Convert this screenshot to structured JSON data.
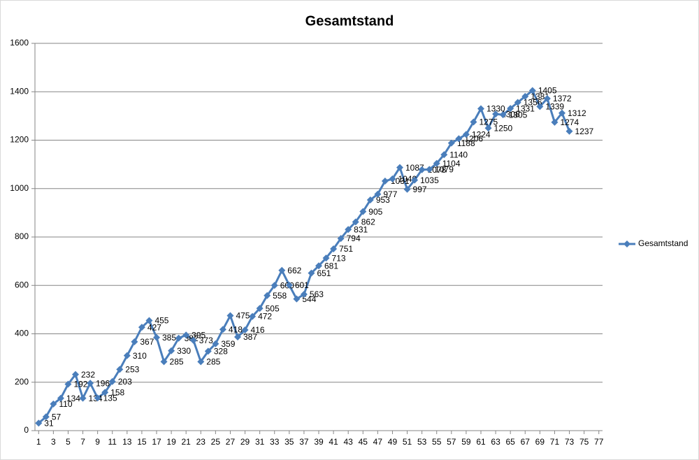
{
  "chart_data": {
    "type": "line",
    "title": "Gesamtstand",
    "x": [
      1,
      2,
      3,
      4,
      5,
      6,
      7,
      8,
      9,
      10,
      11,
      12,
      13,
      14,
      15,
      16,
      17,
      18,
      19,
      20,
      21,
      22,
      23,
      24,
      25,
      26,
      27,
      28,
      29,
      30,
      31,
      32,
      33,
      34,
      35,
      36,
      37,
      38,
      39,
      40,
      41,
      42,
      43,
      44,
      45,
      46,
      47,
      48,
      49,
      50,
      51,
      52,
      53,
      54,
      55,
      56,
      57,
      58,
      59,
      60,
      61,
      62,
      63,
      64,
      65,
      66,
      67,
      68,
      69,
      70,
      71,
      72,
      73
    ],
    "series": [
      {
        "name": "Gesamtstand",
        "color": "#4a7ebb",
        "values": [
          31,
          57,
          110,
          134,
          192,
          232,
          134,
          196,
          135,
          158,
          203,
          253,
          310,
          367,
          427,
          455,
          385,
          285,
          330,
          382,
          395,
          373,
          285,
          328,
          359,
          418,
          475,
          387,
          416,
          472,
          505,
          558,
          600,
          662,
          601,
          544,
          563,
          651,
          681,
          713,
          751,
          794,
          831,
          862,
          905,
          953,
          977,
          1031,
          1040,
          1087,
          997,
          1035,
          1078,
          1079,
          1104,
          1140,
          1188,
          1206,
          1224,
          1275,
          1330,
          1250,
          1308,
          1305,
          1331,
          1356,
          1381,
          1405,
          1339,
          1372,
          1274,
          1312,
          1237
        ]
      }
    ],
    "xlim": [
      0.5,
      77.5
    ],
    "xticks": [
      1,
      3,
      5,
      7,
      9,
      11,
      13,
      15,
      17,
      19,
      21,
      23,
      25,
      27,
      29,
      31,
      33,
      35,
      37,
      39,
      41,
      43,
      45,
      47,
      49,
      51,
      53,
      55,
      57,
      59,
      61,
      63,
      65,
      67,
      69,
      71,
      73,
      75,
      77
    ],
    "ylim": [
      0,
      1600
    ],
    "yticks": [
      0,
      200,
      400,
      600,
      800,
      1000,
      1200,
      1400,
      1600
    ],
    "grid": true,
    "legend": "right"
  }
}
